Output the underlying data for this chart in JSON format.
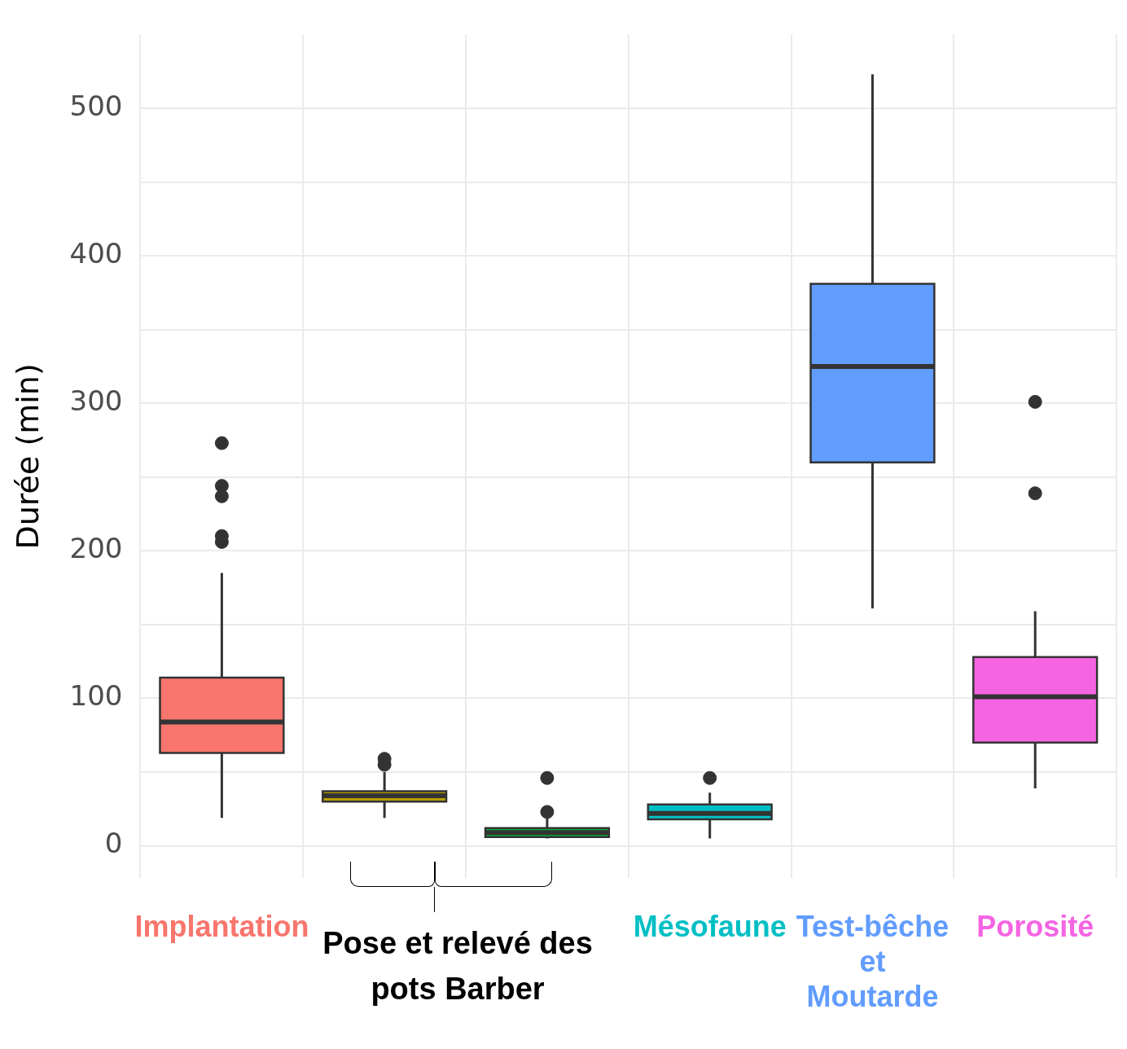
{
  "chart_data": {
    "type": "box",
    "ylabel": "Durée (min)",
    "categories": [
      "Implantation",
      null,
      null,
      "Mésofaune",
      "Test-bêche et Moutarde",
      "Porosité"
    ],
    "colors": [
      "#f8766d",
      "#b79f00",
      "#00ba38",
      "#00bfc4",
      "#619cff",
      "#f564e3"
    ],
    "boxes": [
      {
        "low": 19,
        "q1": 63,
        "median": 84,
        "q3": 114,
        "high": 185,
        "outliers": [
          273,
          244,
          237,
          210,
          206
        ]
      },
      {
        "low": 19,
        "q1": 30,
        "median": 34,
        "q3": 37,
        "high": 50,
        "outliers": [
          59,
          55
        ]
      },
      {
        "low": 5,
        "q1": 6,
        "median": 9,
        "q3": 12,
        "high": 19,
        "outliers": [
          23,
          46
        ]
      },
      {
        "low": 5,
        "q1": 18,
        "median": 22,
        "q3": 28,
        "high": 36,
        "outliers": [
          46
        ]
      },
      {
        "low": 161,
        "q1": 260,
        "median": 325,
        "q3": 381,
        "high": 523
      },
      {
        "low": 39,
        "q1": 70,
        "median": 101,
        "q3": 128,
        "high": 159,
        "outliers": [
          301,
          239
        ]
      }
    ],
    "ylim": [
      -22,
      550
    ],
    "yticks": [
      0,
      {
        "value": 50,
        "label": null
      },
      100,
      {
        "value": 150,
        "label": null
      },
      200,
      {
        "value": 250,
        "label": null
      },
      300,
      {
        "value": 350,
        "label": null
      },
      400,
      {
        "value": 450,
        "label": null
      },
      500
    ],
    "grid": true,
    "annotations": [
      "Pose et relevé des pots Barber"
    ]
  }
}
